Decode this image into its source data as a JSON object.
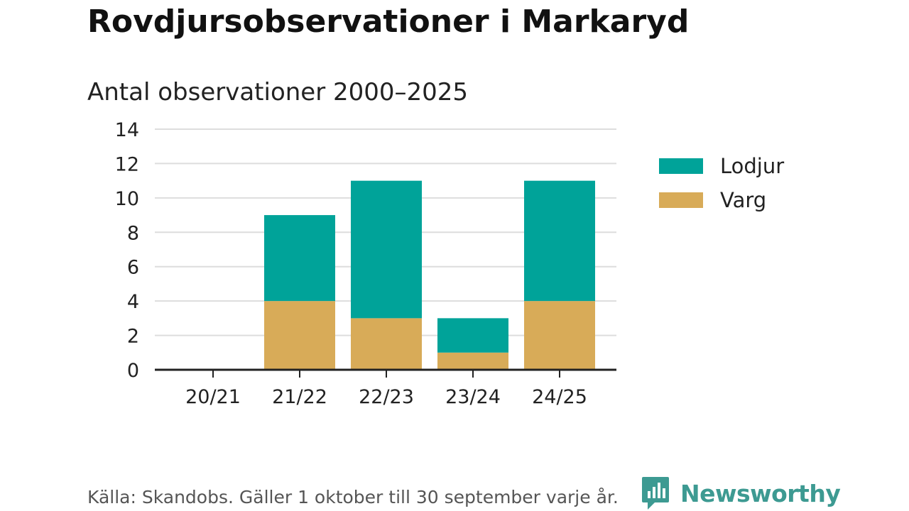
{
  "title": "Rovdjursobservationer i Markaryd",
  "subtitle": "Antal observationer 2000–2025",
  "source": "Källa: Skandobs. Gäller 1 oktober till 30 september varje år.",
  "brand": {
    "name": "Newsworthy",
    "icon": "newsworthy-logo-icon"
  },
  "colors": {
    "lodjur": "#00a399",
    "varg": "#d8ab58",
    "grid": "#dddddd",
    "axis": "#222222",
    "brand": "#3d9a92"
  },
  "legend": [
    {
      "label": "Lodjur",
      "color": "#00a399"
    },
    {
      "label": "Varg",
      "color": "#d8ab58"
    }
  ],
  "chart_data": {
    "type": "bar",
    "stacked": true,
    "title": "Rovdjursobservationer i Markaryd",
    "subtitle": "Antal observationer 2000–2025",
    "categories": [
      "20/21",
      "21/22",
      "22/23",
      "23/24",
      "24/25"
    ],
    "series": [
      {
        "name": "Varg",
        "values": [
          0,
          4,
          3,
          1,
          4
        ],
        "color": "#d8ab58"
      },
      {
        "name": "Lodjur",
        "values": [
          0,
          5,
          8,
          2,
          7
        ],
        "color": "#00a399"
      }
    ],
    "ylim": [
      0,
      14
    ],
    "yticks": [
      "0",
      "2",
      "4",
      "6",
      "8",
      "10",
      "12",
      "14"
    ],
    "grid": true,
    "legend_position": "right",
    "xlabel": "",
    "ylabel": ""
  }
}
